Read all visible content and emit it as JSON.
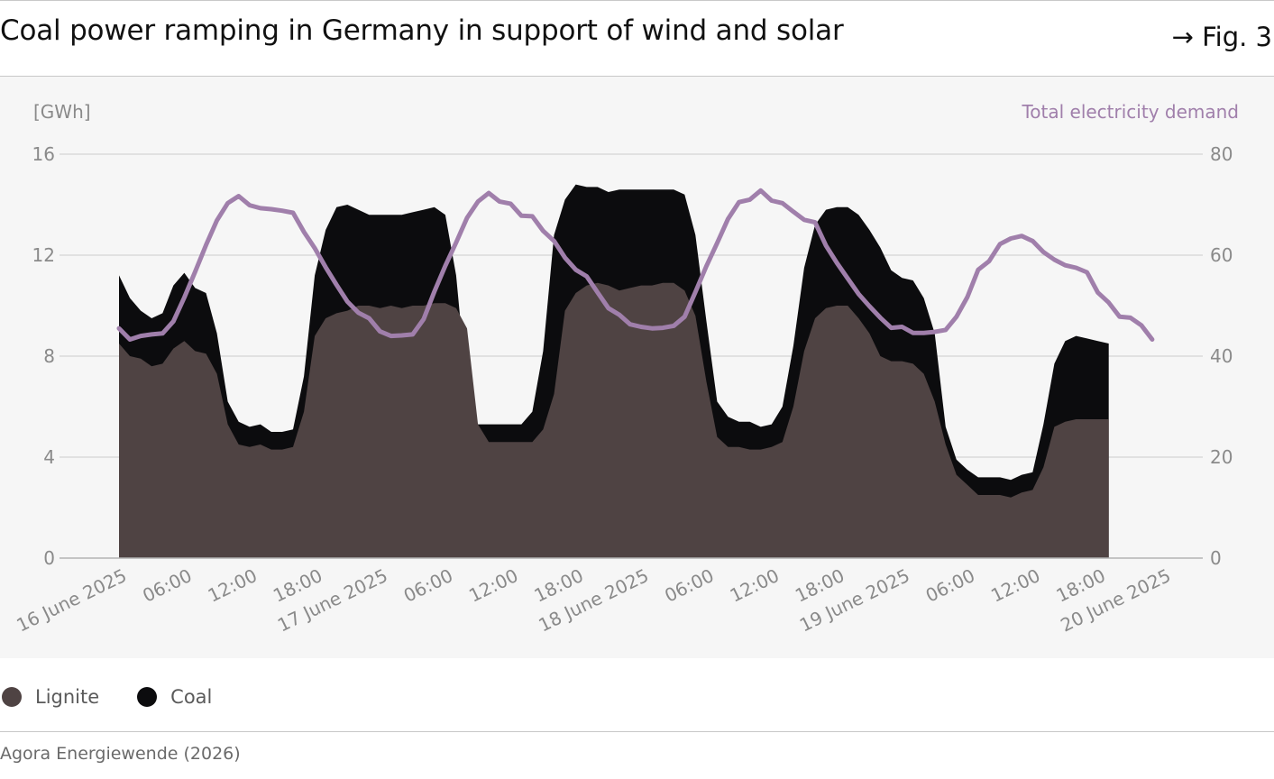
{
  "header": {
    "title": "Coal power ramping in Germany in support of wind and solar",
    "figure_label": "→ Fig. 3"
  },
  "footer": {
    "source": "Agora Energiewende (2026)"
  },
  "colors": {
    "lignite": "#4f4343",
    "coal": "#0c0c0e",
    "demand": "#a07fab",
    "axis_text": "#8a8a8a",
    "grid": "#dadada",
    "panel_bg": "#f6f6f6"
  },
  "chart_data": {
    "type": "area",
    "title": "Coal power ramping in Germany in support of wind and solar",
    "ylabel": "[GWh]",
    "y2label": "Total electricity demand",
    "ylim": [
      0,
      16
    ],
    "y2lim": [
      0,
      80
    ],
    "yticks": [
      0,
      4,
      8,
      12,
      16
    ],
    "y2ticks": [
      0,
      20,
      40,
      60,
      80
    ],
    "xlim": [
      0,
      96
    ],
    "x_tick_labels": [
      {
        "x": 0,
        "label": "16 June 2025"
      },
      {
        "x": 6,
        "label": "06:00"
      },
      {
        "x": 12,
        "label": "12:00"
      },
      {
        "x": 18,
        "label": "18:00"
      },
      {
        "x": 24,
        "label": "17 June 2025"
      },
      {
        "x": 30,
        "label": "06:00"
      },
      {
        "x": 36,
        "label": "12:00"
      },
      {
        "x": 42,
        "label": "18:00"
      },
      {
        "x": 48,
        "label": "18 June 2025"
      },
      {
        "x": 54,
        "label": "06:00"
      },
      {
        "x": 60,
        "label": "12:00"
      },
      {
        "x": 66,
        "label": "18:00"
      },
      {
        "x": 72,
        "label": "19 June 2025"
      },
      {
        "x": 78,
        "label": "06:00"
      },
      {
        "x": 84,
        "label": "12:00"
      },
      {
        "x": 90,
        "label": "18:00"
      },
      {
        "x": 96,
        "label": "20 June 2025"
      }
    ],
    "grid": true,
    "legend_position": "bottom-left",
    "stack_series": [
      {
        "name": "Lignite",
        "points": [
          [
            0,
            8.5
          ],
          [
            1,
            8
          ],
          [
            2,
            7.9
          ],
          [
            3,
            7.6
          ],
          [
            4,
            7.7
          ],
          [
            5,
            8.3
          ],
          [
            6,
            8.6
          ],
          [
            7,
            8.2
          ],
          [
            8,
            8.1
          ],
          [
            9,
            7.3
          ],
          [
            10,
            5.3
          ],
          [
            11,
            4.5
          ],
          [
            12,
            4.4
          ],
          [
            13,
            4.5
          ],
          [
            14,
            4.3
          ],
          [
            15,
            4.3
          ],
          [
            16,
            4.4
          ],
          [
            17,
            5.8
          ],
          [
            18,
            8.8
          ],
          [
            19,
            9.5
          ],
          [
            20,
            9.7
          ],
          [
            21,
            9.8
          ],
          [
            22,
            10
          ],
          [
            23,
            10
          ],
          [
            24,
            9.9
          ],
          [
            25,
            10
          ],
          [
            26,
            9.9
          ],
          [
            27,
            10
          ],
          [
            28,
            10
          ],
          [
            29,
            10.1
          ],
          [
            30,
            10.1
          ],
          [
            31,
            9.9
          ],
          [
            32,
            9.1
          ],
          [
            33,
            5.3
          ],
          [
            34,
            4.6
          ],
          [
            35,
            4.6
          ],
          [
            36,
            4.6
          ],
          [
            37,
            4.6
          ],
          [
            38,
            4.6
          ],
          [
            39,
            5.1
          ],
          [
            40,
            6.5
          ],
          [
            41,
            9.8
          ],
          [
            42,
            10.5
          ],
          [
            43,
            10.8
          ],
          [
            44,
            10.9
          ],
          [
            45,
            10.8
          ],
          [
            46,
            10.6
          ],
          [
            47,
            10.7
          ],
          [
            48,
            10.8
          ],
          [
            49,
            10.8
          ],
          [
            50,
            10.9
          ],
          [
            51,
            10.9
          ],
          [
            52,
            10.6
          ],
          [
            53,
            9.6
          ],
          [
            54,
            7
          ],
          [
            55,
            4.8
          ],
          [
            56,
            4.4
          ],
          [
            57,
            4.4
          ],
          [
            58,
            4.3
          ],
          [
            59,
            4.3
          ],
          [
            60,
            4.4
          ],
          [
            61,
            4.6
          ],
          [
            62,
            6
          ],
          [
            63,
            8.2
          ],
          [
            64,
            9.5
          ],
          [
            65,
            9.9
          ],
          [
            66,
            10
          ],
          [
            67,
            10
          ],
          [
            68,
            9.5
          ],
          [
            69,
            8.9
          ],
          [
            70,
            8
          ],
          [
            71,
            7.8
          ],
          [
            72,
            7.8
          ],
          [
            73,
            7.7
          ],
          [
            74,
            7.3
          ],
          [
            75,
            6.2
          ],
          [
            76,
            4.5
          ],
          [
            77,
            3.3
          ],
          [
            78,
            2.9
          ],
          [
            79,
            2.5
          ],
          [
            80,
            2.5
          ],
          [
            81,
            2.5
          ],
          [
            82,
            2.4
          ],
          [
            83,
            2.6
          ],
          [
            84,
            2.7
          ],
          [
            85,
            3.6
          ],
          [
            86,
            5.2
          ],
          [
            87,
            5.4
          ],
          [
            88,
            5.5
          ],
          [
            89,
            5.5
          ],
          [
            90,
            5.5
          ],
          [
            91,
            5.5
          ]
        ]
      },
      {
        "name": "Coal",
        "points": [
          [
            0,
            11.2
          ],
          [
            1,
            10.3
          ],
          [
            2,
            9.8
          ],
          [
            3,
            9.5
          ],
          [
            4,
            9.7
          ],
          [
            5,
            10.8
          ],
          [
            6,
            11.3
          ],
          [
            7,
            10.7
          ],
          [
            8,
            10.5
          ],
          [
            9,
            8.9
          ],
          [
            10,
            6.2
          ],
          [
            11,
            5.4
          ],
          [
            12,
            5.2
          ],
          [
            13,
            5.3
          ],
          [
            14,
            5
          ],
          [
            15,
            5
          ],
          [
            16,
            5.1
          ],
          [
            17,
            7.2
          ],
          [
            18,
            11.2
          ],
          [
            19,
            13
          ],
          [
            20,
            13.9
          ],
          [
            21,
            14
          ],
          [
            22,
            13.8
          ],
          [
            23,
            13.6
          ],
          [
            24,
            13.6
          ],
          [
            25,
            13.6
          ],
          [
            26,
            13.6
          ],
          [
            27,
            13.7
          ],
          [
            28,
            13.8
          ],
          [
            29,
            13.9
          ],
          [
            30,
            13.6
          ],
          [
            31,
            11.2
          ],
          [
            32,
            6.6
          ],
          [
            33,
            5.3
          ],
          [
            34,
            5.3
          ],
          [
            35,
            5.3
          ],
          [
            36,
            5.3
          ],
          [
            37,
            5.3
          ],
          [
            38,
            5.8
          ],
          [
            39,
            8.2
          ],
          [
            40,
            12.8
          ],
          [
            41,
            14.2
          ],
          [
            42,
            14.8
          ],
          [
            43,
            14.7
          ],
          [
            44,
            14.7
          ],
          [
            45,
            14.5
          ],
          [
            46,
            14.6
          ],
          [
            47,
            14.6
          ],
          [
            48,
            14.6
          ],
          [
            49,
            14.6
          ],
          [
            50,
            14.6
          ],
          [
            51,
            14.6
          ],
          [
            52,
            14.4
          ],
          [
            53,
            12.8
          ],
          [
            54,
            9.4
          ],
          [
            55,
            6.2
          ],
          [
            56,
            5.6
          ],
          [
            57,
            5.4
          ],
          [
            58,
            5.4
          ],
          [
            59,
            5.2
          ],
          [
            60,
            5.3
          ],
          [
            61,
            6
          ],
          [
            62,
            8.4
          ],
          [
            63,
            11.5
          ],
          [
            64,
            13.2
          ],
          [
            65,
            13.8
          ],
          [
            66,
            13.9
          ],
          [
            67,
            13.9
          ],
          [
            68,
            13.6
          ],
          [
            69,
            13
          ],
          [
            70,
            12.3
          ],
          [
            71,
            11.4
          ],
          [
            72,
            11.1
          ],
          [
            73,
            11
          ],
          [
            74,
            10.3
          ],
          [
            75,
            8.9
          ],
          [
            76,
            5.2
          ],
          [
            77,
            3.9
          ],
          [
            78,
            3.5
          ],
          [
            79,
            3.2
          ],
          [
            80,
            3.2
          ],
          [
            81,
            3.2
          ],
          [
            82,
            3.1
          ],
          [
            83,
            3.3
          ],
          [
            84,
            3.4
          ],
          [
            85,
            5.3
          ],
          [
            86,
            7.7
          ],
          [
            87,
            8.6
          ],
          [
            88,
            8.8
          ],
          [
            89,
            8.7
          ],
          [
            90,
            8.6
          ],
          [
            91,
            8.5
          ]
        ]
      }
    ],
    "line_series": [
      {
        "name": "Total electricity demand",
        "axis": "right",
        "points": [
          [
            0,
            45.5
          ],
          [
            1,
            43.3
          ],
          [
            2,
            44
          ],
          [
            3,
            44.3
          ],
          [
            4,
            44.5
          ],
          [
            5,
            46.9
          ],
          [
            6,
            51.6
          ],
          [
            7,
            56.7
          ],
          [
            8,
            62
          ],
          [
            9,
            66.9
          ],
          [
            10,
            70.3
          ],
          [
            11,
            71.7
          ],
          [
            12,
            69.9
          ],
          [
            13,
            69.3
          ],
          [
            14,
            69.1
          ],
          [
            15,
            68.8
          ],
          [
            16,
            68.4
          ],
          [
            17,
            64.6
          ],
          [
            18,
            61.4
          ],
          [
            19,
            57.6
          ],
          [
            20,
            54.1
          ],
          [
            21,
            50.8
          ],
          [
            22,
            48.6
          ],
          [
            23,
            47.5
          ],
          [
            24,
            44.9
          ],
          [
            25,
            44
          ],
          [
            26,
            44.1
          ],
          [
            27,
            44.3
          ],
          [
            28,
            47.3
          ],
          [
            29,
            52.8
          ],
          [
            30,
            57.9
          ],
          [
            31,
            62.5
          ],
          [
            32,
            67.4
          ],
          [
            33,
            70.6
          ],
          [
            34,
            72.3
          ],
          [
            35,
            70.6
          ],
          [
            36,
            70.2
          ],
          [
            37,
            67.8
          ],
          [
            38,
            67.7
          ],
          [
            39,
            64.8
          ],
          [
            40,
            62.8
          ],
          [
            41,
            59.5
          ],
          [
            42,
            57.1
          ],
          [
            43,
            55.8
          ],
          [
            44,
            52.6
          ],
          [
            45,
            49.5
          ],
          [
            46,
            48.2
          ],
          [
            47,
            46.3
          ],
          [
            48,
            45.8
          ],
          [
            49,
            45.5
          ],
          [
            50,
            45.6
          ],
          [
            51,
            46
          ],
          [
            52,
            47.8
          ],
          [
            53,
            52.7
          ],
          [
            54,
            57.8
          ],
          [
            55,
            62.4
          ],
          [
            56,
            67.2
          ],
          [
            57,
            70.5
          ],
          [
            58,
            71
          ],
          [
            59,
            72.8
          ],
          [
            60,
            70.8
          ],
          [
            61,
            70.3
          ],
          [
            62,
            68.6
          ],
          [
            63,
            67
          ],
          [
            64,
            66.5
          ],
          [
            65,
            61.9
          ],
          [
            66,
            58.5
          ],
          [
            67,
            55.4
          ],
          [
            68,
            52.3
          ],
          [
            69,
            49.9
          ],
          [
            70,
            47.6
          ],
          [
            71,
            45.6
          ],
          [
            72,
            45.8
          ],
          [
            73,
            44.6
          ],
          [
            74,
            44.6
          ],
          [
            75,
            44.8
          ],
          [
            76,
            45.2
          ],
          [
            77,
            47.8
          ],
          [
            78,
            51.7
          ],
          [
            79,
            57.1
          ],
          [
            80,
            58.8
          ],
          [
            81,
            62.2
          ],
          [
            82,
            63.3
          ],
          [
            83,
            63.8
          ],
          [
            84,
            62.8
          ],
          [
            85,
            60.6
          ],
          [
            86,
            59.1
          ],
          [
            87,
            58
          ],
          [
            88,
            57.5
          ],
          [
            89,
            56.6
          ],
          [
            90,
            52.6
          ],
          [
            91,
            50.6
          ],
          [
            92,
            47.8
          ],
          [
            93,
            47.6
          ],
          [
            94,
            46.1
          ],
          [
            95,
            43.3
          ]
        ]
      }
    ]
  },
  "legend": {
    "items": [
      {
        "label": "Lignite"
      },
      {
        "label": "Coal"
      }
    ]
  }
}
